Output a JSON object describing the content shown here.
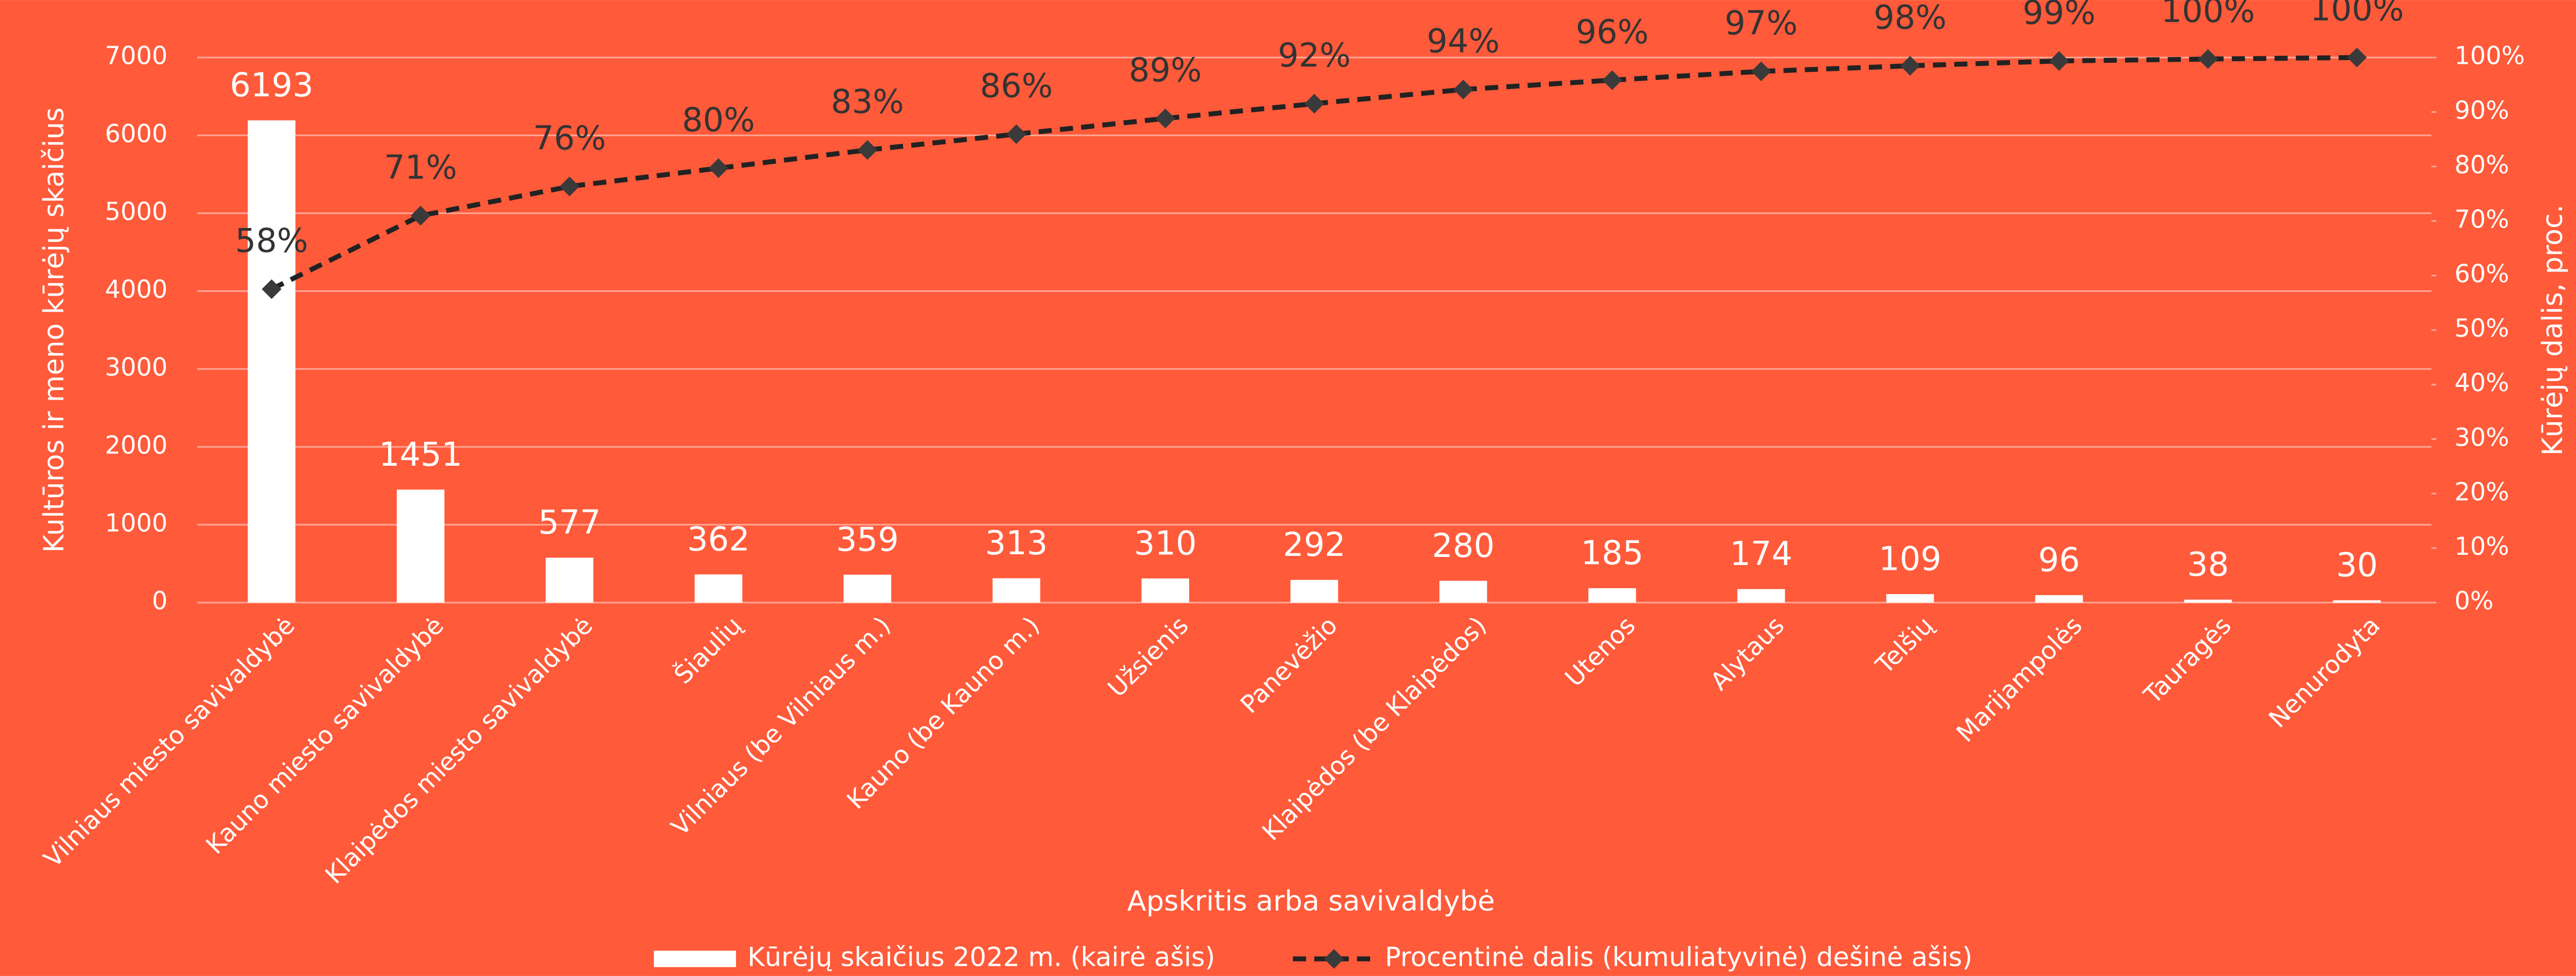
{
  "chart_data": {
    "type": "bar",
    "categories": [
      "Vilniaus miesto savivaldybė",
      "Kauno miesto savivaldybė",
      "Klaipėdos miesto savivaldybė",
      "Šiaulių",
      "Vilniaus (be Vilniaus m.)",
      "Kauno (be Kauno m.)",
      "Užsienis",
      "Panevėžio",
      "Klaipėdos (be Klaipėdos)",
      "Utenos",
      "Alytaus",
      "Telšių",
      "Marijampolės",
      "Tauragės",
      "Nenurodyta"
    ],
    "series": [
      {
        "name": "Kūrėjų skaičius 2022 m. (kairė ašis)",
        "type": "bar",
        "color": "#ffffff",
        "values": [
          6193,
          1451,
          577,
          362,
          359,
          313,
          310,
          292,
          280,
          185,
          174,
          109,
          96,
          38,
          30
        ]
      },
      {
        "name": "Procentinė dalis (kumuliatyvinė) dešinė ašis)",
        "type": "line",
        "axis": "y2",
        "color": "#222222",
        "marker_color": "#3a3a3a",
        "values": [
          57.51,
          70.98,
          76.34,
          79.7,
          83.04,
          85.94,
          88.82,
          91.53,
          94.13,
          95.85,
          97.46,
          98.48,
          99.37,
          99.72,
          100
        ],
        "value_labels": [
          "58%",
          "71%",
          "76%",
          "80%",
          "83%",
          "86%",
          "89%",
          "92%",
          "94%",
          "96%",
          "97%",
          "98%",
          "99%",
          "100%",
          "100%"
        ]
      }
    ],
    "xlabel": "Apskritis arba savivaldybė",
    "ylabel": "Kultūros ir meno kūrėjų skaičius",
    "y2label": "Kūrėjų dalis, proc.",
    "ylim": [
      0,
      7000
    ],
    "yticks": [
      0,
      1000,
      2000,
      3000,
      4000,
      5000,
      6000,
      7000
    ],
    "y2lim": [
      0,
      100
    ],
    "y2ticks": [
      {
        "value": 0,
        "label": "0%"
      },
      {
        "value": 10,
        "label": "10%"
      },
      {
        "value": 20,
        "label": "20%"
      },
      {
        "value": 30,
        "label": "30%"
      },
      {
        "value": 40,
        "label": "40%"
      },
      {
        "value": 50,
        "label": "50%"
      },
      {
        "value": 60,
        "label": "60%"
      },
      {
        "value": 70,
        "label": "70%"
      },
      {
        "value": 80,
        "label": "80%"
      },
      {
        "value": 90,
        "label": "90%"
      },
      {
        "value": 100,
        "label": "100%"
      }
    ],
    "grid": true,
    "legend": "bottom",
    "background": "#ff5a3a"
  }
}
